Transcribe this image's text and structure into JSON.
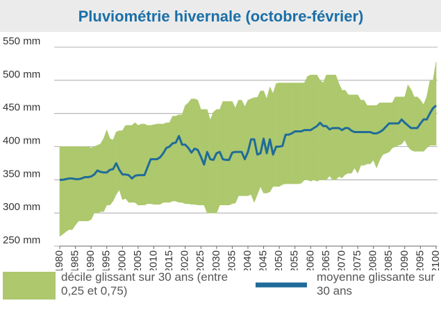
{
  "chart_data": {
    "type": "band-line",
    "title": "Pluviométrie hivernale (octobre-février)",
    "x": [
      1980,
      1981,
      1982,
      1983,
      1984,
      1985,
      1986,
      1987,
      1988,
      1989,
      1990,
      1991,
      1992,
      1993,
      1994,
      1995,
      1996,
      1997,
      1998,
      1999,
      2000,
      2001,
      2002,
      2003,
      2004,
      2005,
      2006,
      2007,
      2008,
      2009,
      2010,
      2011,
      2012,
      2013,
      2014,
      2015,
      2016,
      2017,
      2018,
      2019,
      2020,
      2021,
      2022,
      2023,
      2024,
      2025,
      2026,
      2027,
      2028,
      2029,
      2030,
      2031,
      2032,
      2033,
      2034,
      2035,
      2036,
      2037,
      2038,
      2039,
      2040,
      2041,
      2042,
      2043,
      2044,
      2045,
      2046,
      2047,
      2048,
      2049,
      2050,
      2051,
      2052,
      2053,
      2054,
      2055,
      2056,
      2057,
      2058,
      2059,
      2060,
      2061,
      2062,
      2063,
      2064,
      2065,
      2066,
      2067,
      2068,
      2069,
      2070,
      2071,
      2072,
      2073,
      2074,
      2075,
      2076,
      2077,
      2078,
      2079,
      2080,
      2081,
      2082,
      2083,
      2084,
      2085,
      2086,
      2087,
      2088,
      2089,
      2090,
      2091,
      2092,
      2093,
      2094,
      2095,
      2096,
      2097,
      2098,
      2099,
      2100
    ],
    "series": [
      {
        "name": "décile glissant sur 30 ans (entre 0,25 et 0,75)",
        "color": "#adc86d",
        "upper": [
          400,
          400,
          400,
          400,
          400,
          400,
          400,
          400,
          400,
          400,
          398,
          400,
          402,
          404,
          412,
          425,
          412,
          410,
          422,
          424,
          424,
          432,
          432,
          432,
          436,
          432,
          434,
          434,
          432,
          432,
          433,
          434,
          434,
          434,
          436,
          436,
          446,
          446,
          448,
          448,
          462,
          466,
          472,
          472,
          470,
          456,
          456,
          456,
          440,
          452,
          456,
          456,
          468,
          468,
          468,
          468,
          458,
          470,
          470,
          460,
          470,
          472,
          474,
          474,
          484,
          484,
          472,
          490,
          480,
          495,
          496,
          496,
          496,
          496,
          496,
          496,
          496,
          496,
          496,
          506,
          508,
          508,
          508,
          500,
          496,
          508,
          508,
          508,
          508,
          495,
          485,
          485,
          478,
          478,
          478,
          478,
          470,
          470,
          462,
          462,
          462,
          462,
          466,
          466,
          466,
          466,
          466,
          475,
          475,
          475,
          475,
          493,
          486,
          475,
          475,
          470,
          463,
          475,
          499,
          500,
          528
        ],
        "lower": [
          265,
          268,
          272,
          275,
          275,
          282,
          288,
          288,
          288,
          288,
          290,
          300,
          300,
          302,
          302,
          312,
          312,
          318,
          328,
          335,
          320,
          322,
          316,
          316,
          316,
          312,
          312,
          312,
          314,
          314,
          313,
          313,
          313,
          316,
          316,
          316,
          318,
          318,
          316,
          316,
          314,
          314,
          313,
          313,
          312,
          312,
          312,
          300,
          300,
          300,
          300,
          312,
          312,
          312,
          312,
          314,
          315,
          326,
          326,
          326,
          326,
          328,
          316,
          328,
          340,
          330,
          330,
          332,
          340,
          340,
          340,
          343,
          344,
          344,
          344,
          344,
          344,
          345,
          350,
          350,
          348,
          350,
          348,
          350,
          350,
          350,
          356,
          350,
          350,
          355,
          353,
          358,
          360,
          360,
          368,
          360,
          372,
          372,
          374,
          374,
          380,
          368,
          380,
          388,
          390,
          392,
          398,
          400,
          402,
          404,
          410,
          400,
          395,
          393,
          393,
          393,
          393,
          398,
          402,
          402,
          402
        ]
      },
      {
        "name": "moyenne glissante sur 30 ans",
        "color": "#1f6b99",
        "values": [
          350,
          350,
          351,
          352,
          352,
          351,
          351,
          352,
          354,
          354,
          355,
          358,
          364,
          362,
          361,
          361,
          365,
          366,
          375,
          365,
          358,
          358,
          357,
          352,
          356,
          357,
          357,
          357,
          369,
          381,
          381,
          381,
          384,
          390,
          398,
          400,
          405,
          406,
          416,
          403,
          403,
          398,
          391,
          397,
          395,
          385,
          373,
          392,
          381,
          380,
          390,
          392,
          381,
          380,
          380,
          391,
          392,
          392,
          392,
          381,
          392,
          411,
          411,
          388,
          390,
          412,
          390,
          411,
          388,
          400,
          400,
          401,
          418,
          418,
          420,
          423,
          423,
          423,
          425,
          425,
          425,
          428,
          431,
          436,
          431,
          431,
          426,
          428,
          428,
          428,
          425,
          428,
          428,
          424,
          422,
          422,
          422,
          422,
          422,
          422,
          420,
          420,
          422,
          425,
          430,
          435,
          435,
          435,
          435,
          441,
          436,
          432,
          428,
          428,
          428,
          435,
          441,
          441,
          450,
          458,
          462
        ]
      }
    ],
    "xlim": [
      1980,
      2100
    ],
    "ylim": [
      250,
      550
    ],
    "xticks": [
      1980,
      1985,
      1990,
      1995,
      2000,
      2005,
      2010,
      2015,
      2020,
      2025,
      2030,
      2035,
      2040,
      2045,
      2050,
      2055,
      2060,
      2065,
      2070,
      2075,
      2080,
      2085,
      2090,
      2095,
      2100
    ],
    "yticks": [
      {
        "value": 250,
        "label": "250 mm"
      },
      {
        "value": 300,
        "label": "300 mm"
      },
      {
        "value": 350,
        "label": "350 mm"
      },
      {
        "value": 400,
        "label": "400 mm"
      },
      {
        "value": 450,
        "label": "450 mm"
      },
      {
        "value": 500,
        "label": "500 mm"
      },
      {
        "value": 550,
        "label": "550 mm"
      }
    ],
    "grid": true
  }
}
